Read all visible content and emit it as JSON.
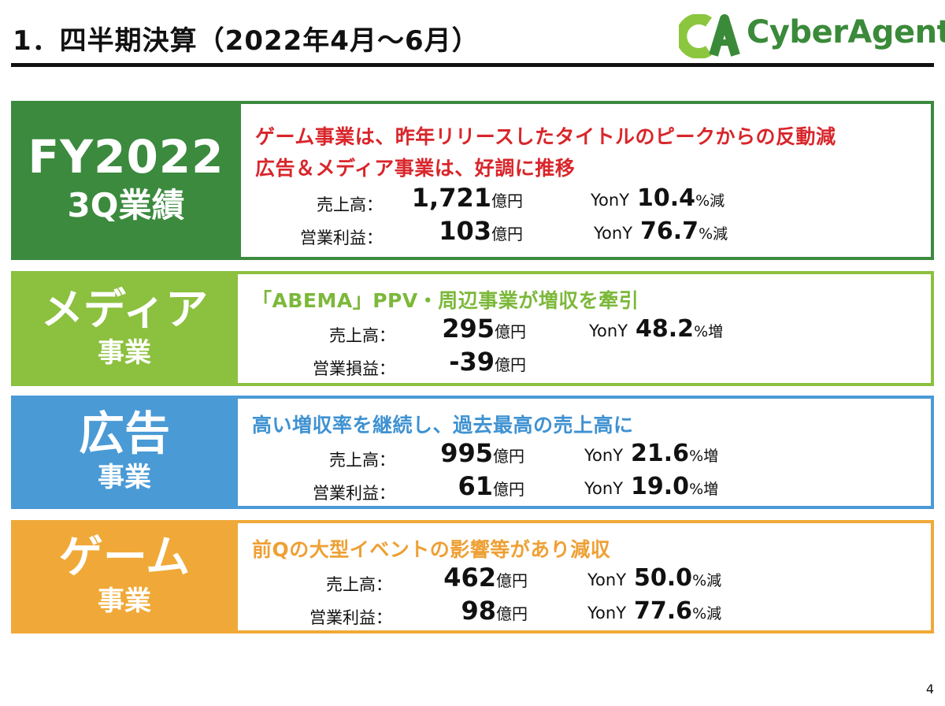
{
  "title": "1．四半期決算（2022年4月～6月）",
  "logo": {
    "text": "CyberAgent",
    "color": "#3a8a3a"
  },
  "page_number": "4",
  "sections": [
    {
      "label_line1": "FY2022",
      "label_line2": "3Q業績",
      "color": "#3b8a3e",
      "headline_color": "#d8262b",
      "headlines": [
        "ゲーム事業は、昨年リリースしたタイトルのピークからの反動減",
        "広告＆メディア事業は、好調に推移"
      ],
      "metrics": [
        {
          "label": "売上高：",
          "value": "1,721",
          "unit": "億円",
          "yoy_label": "YonY",
          "yoy_value": "10.4",
          "yoy_suffix": "%減"
        },
        {
          "label": "営業利益：",
          "value": "103",
          "unit": "億円",
          "yoy_label": "YonY",
          "yoy_value": "76.7",
          "yoy_suffix": "%減"
        }
      ]
    },
    {
      "label_line1": "メディア",
      "label_line2": "事業",
      "color": "#8cc03f",
      "headline_color": "#7cb83a",
      "headlines": [
        "「ABEMA」PPV・周辺事業が増収を牽引"
      ],
      "metrics": [
        {
          "label": "売上高：",
          "value": "295",
          "unit": "億円",
          "yoy_label": "YonY",
          "yoy_value": "48.2",
          "yoy_suffix": "%増"
        },
        {
          "label": "営業損益：",
          "value": "-39",
          "unit": "億円"
        }
      ]
    },
    {
      "label_line1": "広告",
      "label_line2": "事業",
      "color": "#4a9ad6",
      "headline_color": "#3f92d2",
      "headlines": [
        "高い増収率を継続し、過去最高の売上高に"
      ],
      "metrics": [
        {
          "label": "売上高：",
          "value": "995",
          "unit": "億円",
          "yoy_label": "YonY",
          "yoy_value": "21.6",
          "yoy_suffix": "%増"
        },
        {
          "label": "営業利益：",
          "value": "61",
          "unit": "億円",
          "yoy_label": "YonY",
          "yoy_value": "19.0",
          "yoy_suffix": "%増"
        }
      ]
    },
    {
      "label_line1": "ゲーム",
      "label_line2": "事業",
      "color": "#f0a938",
      "headline_color": "#eea035",
      "headlines": [
        "前Qの大型イベントの影響等があり減収"
      ],
      "metrics": [
        {
          "label": "売上高：",
          "value": "462",
          "unit": "億円",
          "yoy_label": "YonY",
          "yoy_value": "50.0",
          "yoy_suffix": "%減"
        },
        {
          "label": "営業利益：",
          "value": "98",
          "unit": "億円",
          "yoy_label": "YonY",
          "yoy_value": "77.6",
          "yoy_suffix": "%減"
        }
      ]
    }
  ]
}
